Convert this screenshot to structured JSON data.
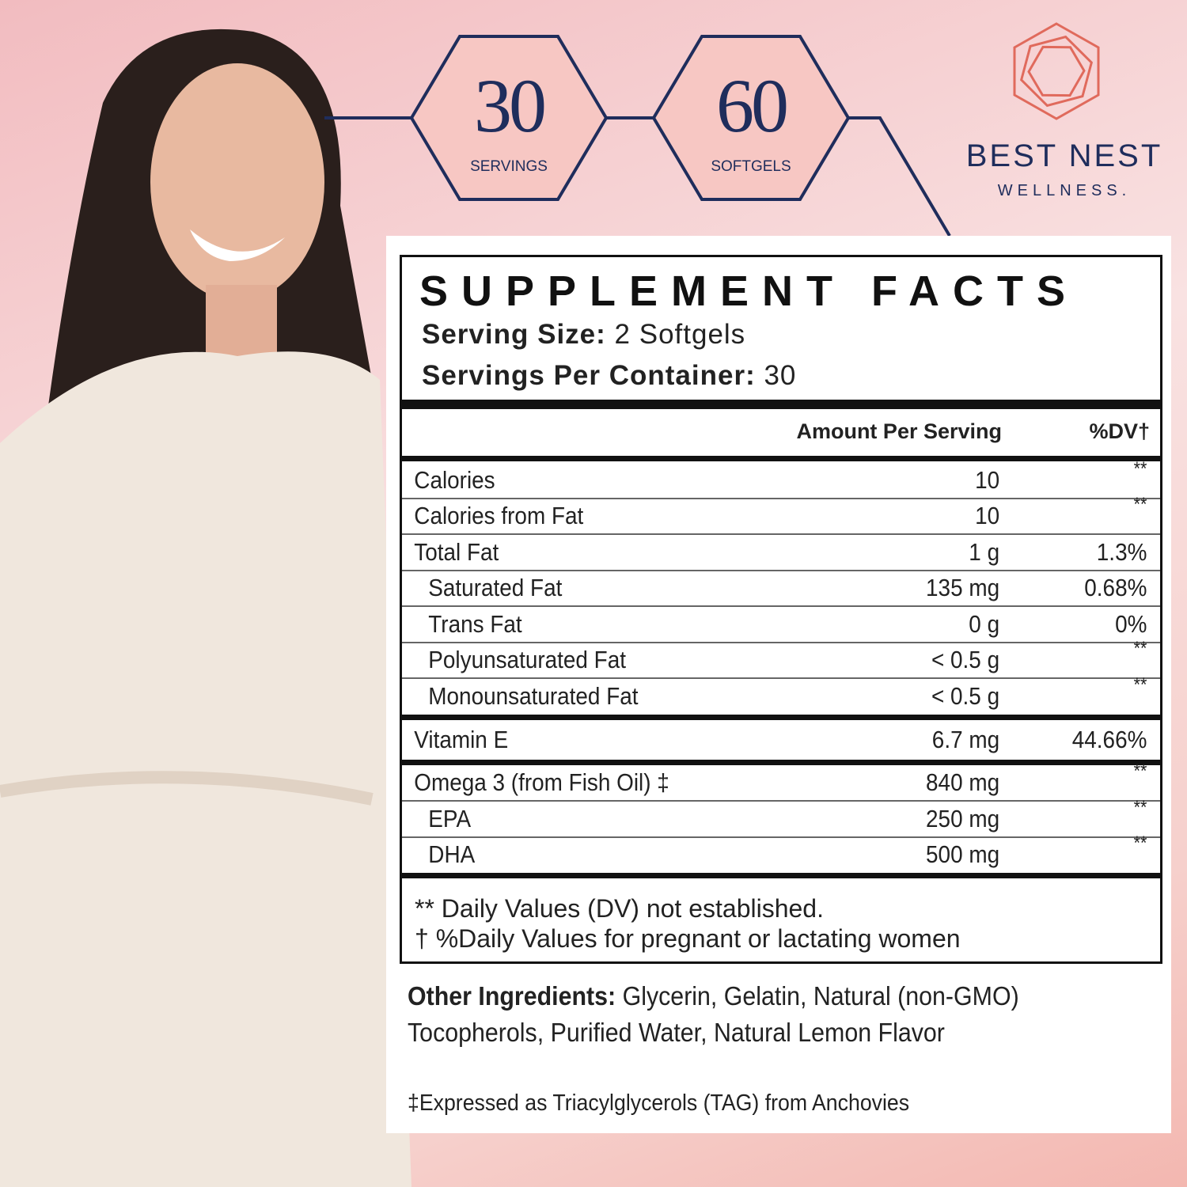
{
  "badges": [
    {
      "number": "30",
      "label": "SERVINGS"
    },
    {
      "number": "60",
      "label": "SOFTGELS"
    }
  ],
  "brand": {
    "name": "BEST NEST",
    "tagline": "WELLNESS."
  },
  "facts": {
    "title": "SUPPLEMENT FACTS",
    "serving_size": {
      "label": "Serving Size:",
      "value": "2 Softgels"
    },
    "servings_per_container": {
      "label": "Servings Per Container:",
      "value": "30"
    },
    "columns": [
      "Amount Per Serving",
      "%DV†"
    ],
    "groups": [
      [
        {
          "name": "Calories",
          "amount": "10",
          "dv": "**"
        },
        {
          "name": "Calories from Fat",
          "amount": "10",
          "dv": "**"
        },
        {
          "name": "Total Fat",
          "amount": "1 g",
          "dv": "1.3%"
        },
        {
          "name": "Saturated Fat",
          "amount": "135 mg",
          "dv": "0.68%",
          "indent": true
        },
        {
          "name": "Trans Fat",
          "amount": "0 g",
          "dv": "0%",
          "indent": true
        },
        {
          "name": "Polyunsaturated Fat",
          "amount": "< 0.5 g",
          "dv": "**",
          "indent": true
        },
        {
          "name": "Monounsaturated Fat",
          "amount": "< 0.5 g",
          "dv": "**",
          "indent": true
        }
      ],
      [
        {
          "name": "Vitamin E",
          "amount": "6.7 mg",
          "dv": "44.66%"
        }
      ],
      [
        {
          "name": "Omega 3 (from Fish Oil) ‡",
          "amount": "840 mg",
          "dv": "**"
        },
        {
          "name": "EPA",
          "amount": "250 mg",
          "dv": "**",
          "indent": true
        },
        {
          "name": "DHA",
          "amount": "500 mg",
          "dv": "**",
          "indent": true
        }
      ]
    ],
    "footnotes": [
      "** Daily Values (DV) not established.",
      "† %Daily Values for pregnant or lactating women"
    ]
  },
  "other_ingredients": {
    "label": "Other Ingredients:",
    "text": "Glycerin, Gelatin, Natural (non-GMO) Tocopherols, Purified Water, Natural Lemon Flavor"
  },
  "note": "‡Expressed as Triacylglycerols (TAG) from Anchovies"
}
